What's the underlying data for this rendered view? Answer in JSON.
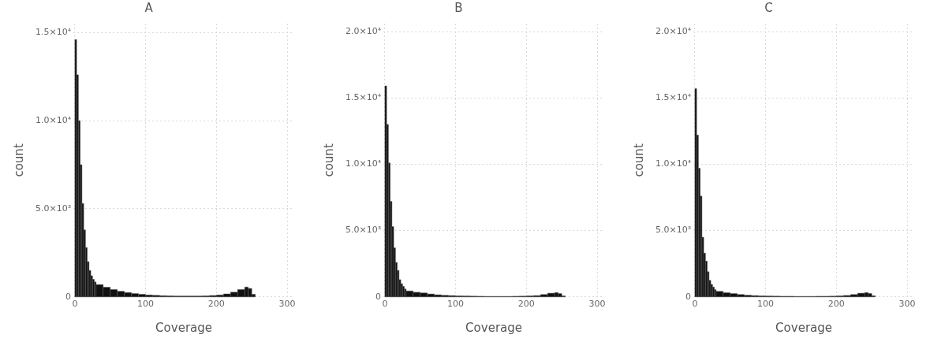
{
  "chart_data": [
    {
      "type": "histogram",
      "title": "A",
      "xlabel": "Coverage",
      "ylabel": "count",
      "xlim": [
        -2,
        310
      ],
      "ylim": [
        0,
        15500
      ],
      "xticks": [
        0,
        100,
        200,
        300
      ],
      "yticks": [
        {
          "value": 0,
          "label": "0"
        },
        {
          "value": 5000,
          "label": "5.0×10³"
        },
        {
          "value": 10000,
          "label": "1.0×10⁴"
        },
        {
          "value": 15000,
          "label": "1.5×10⁴"
        }
      ],
      "grid": true,
      "legend": false,
      "color": "#111111",
      "bins": [
        0,
        2.5,
        5,
        7.5,
        10,
        12.5,
        15,
        17.5,
        20,
        22.5,
        25,
        27.5,
        30,
        40,
        50,
        60,
        70,
        80,
        90,
        100,
        110,
        120,
        130,
        140,
        150,
        160,
        170,
        180,
        190,
        200,
        210,
        220,
        230,
        240,
        245,
        250,
        255
      ],
      "values": [
        14600,
        12600,
        10000,
        7500,
        5300,
        3800,
        2800,
        2000,
        1500,
        1200,
        1000,
        850,
        700,
        550,
        420,
        320,
        250,
        190,
        150,
        110,
        90,
        70,
        60,
        50,
        50,
        50,
        50,
        60,
        80,
        110,
        170,
        270,
        420,
        560,
        480,
        150
      ]
    },
    {
      "type": "histogram",
      "title": "B",
      "xlabel": "Coverage",
      "ylabel": "count",
      "xlim": [
        -2,
        310
      ],
      "ylim": [
        0,
        20600
      ],
      "xticks": [
        0,
        100,
        200,
        300
      ],
      "yticks": [
        {
          "value": 0,
          "label": "0"
        },
        {
          "value": 5000,
          "label": "5.0×10³"
        },
        {
          "value": 10000,
          "label": "1.0×10⁴"
        },
        {
          "value": 15000,
          "label": "1.5×10⁴"
        },
        {
          "value": 20000,
          "label": "2.0×10⁴"
        }
      ],
      "grid": true,
      "legend": false,
      "color": "#111111",
      "bins": [
        0,
        2.5,
        5,
        7.5,
        10,
        12.5,
        15,
        17.5,
        20,
        22.5,
        25,
        27.5,
        30,
        40,
        50,
        60,
        70,
        80,
        90,
        100,
        110,
        120,
        130,
        140,
        150,
        160,
        170,
        180,
        190,
        200,
        210,
        220,
        230,
        240,
        245,
        250,
        255
      ],
      "values": [
        15900,
        13000,
        10100,
        7200,
        5300,
        3700,
        2600,
        2000,
        1300,
        1000,
        800,
        600,
        450,
        350,
        300,
        220,
        160,
        120,
        100,
        80,
        70,
        60,
        50,
        40,
        40,
        40,
        40,
        50,
        60,
        80,
        100,
        180,
        280,
        330,
        250,
        80
      ]
    },
    {
      "type": "histogram",
      "title": "C",
      "xlabel": "Coverage",
      "ylabel": "count",
      "xlim": [
        -2,
        310
      ],
      "ylim": [
        0,
        20600
      ],
      "xticks": [
        0,
        100,
        200,
        300
      ],
      "yticks": [
        {
          "value": 0,
          "label": "0"
        },
        {
          "value": 5000,
          "label": "5.0×10³"
        },
        {
          "value": 10000,
          "label": "1.0×10⁴"
        },
        {
          "value": 15000,
          "label": "1.5×10⁴"
        },
        {
          "value": 20000,
          "label": "2.0×10⁴"
        }
      ],
      "grid": true,
      "legend": false,
      "color": "#111111",
      "bins": [
        0,
        2.5,
        5,
        7.5,
        10,
        12.5,
        15,
        17.5,
        20,
        22.5,
        25,
        27.5,
        30,
        40,
        50,
        60,
        70,
        80,
        90,
        100,
        110,
        120,
        130,
        140,
        150,
        160,
        170,
        180,
        190,
        200,
        210,
        220,
        230,
        240,
        245,
        250,
        255
      ],
      "values": [
        15700,
        12200,
        9700,
        7600,
        4500,
        3300,
        2700,
        1900,
        1250,
        950,
        750,
        550,
        420,
        320,
        250,
        180,
        130,
        100,
        80,
        70,
        60,
        50,
        50,
        40,
        40,
        40,
        50,
        50,
        60,
        80,
        110,
        180,
        280,
        330,
        260,
        90
      ]
    }
  ]
}
